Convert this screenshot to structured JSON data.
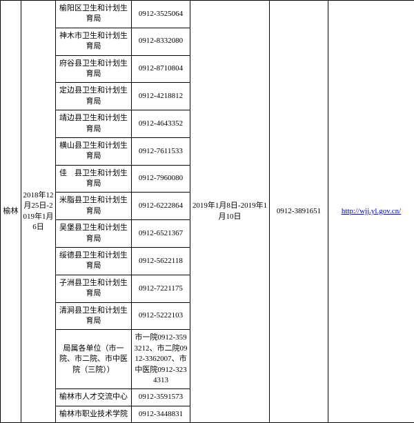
{
  "region": "榆林",
  "period1": "2018年12月25日-2019年1月6日",
  "period2": "2019年1月8日-2019年1月10日",
  "phone2": "0912-3891651",
  "link_text": "http://wjj.yl.gov.cn/",
  "rows": [
    {
      "org": "榆阳区卫生和计划生育局",
      "phone": "0912-3525064"
    },
    {
      "org": "神木市卫生和计划生育局",
      "phone": "0912-8332080"
    },
    {
      "org": "府谷县卫生和计划生育局",
      "phone": "0912-8710804"
    },
    {
      "org": "定边县卫生和计划生育局",
      "phone": "0912-4218812"
    },
    {
      "org": "靖边县卫生和计划生育局",
      "phone": "0912-4643352"
    },
    {
      "org": "横山县卫生和计划生育局",
      "phone": "0912-7611533"
    },
    {
      "org": "佳　县卫生和计划生育局",
      "phone": "0912-7960080"
    },
    {
      "org": "米脂县卫生和计划生育局",
      "phone": "0912-6222864"
    },
    {
      "org": "吴堡县卫生和计划生育局",
      "phone": "0912-6521367"
    },
    {
      "org": "绥德县卫生和计划生育局",
      "phone": "0912-5622118"
    },
    {
      "org": "子洲县卫生和计划生育局",
      "phone": "0912-7221175"
    },
    {
      "org": "清涧县卫生和计划生育局",
      "phone": "0912-5222103"
    },
    {
      "org": "局属各单位（市一院、市二院、市中医院（三院））",
      "phone": "市一院0912-3593212、市二院0912-3362007、市中医院0912-3234313"
    },
    {
      "org": "榆林市人才交流中心",
      "phone": "0912-3591573"
    },
    {
      "org": "榆林市职业技术学院",
      "phone": "0912-3448831"
    }
  ]
}
